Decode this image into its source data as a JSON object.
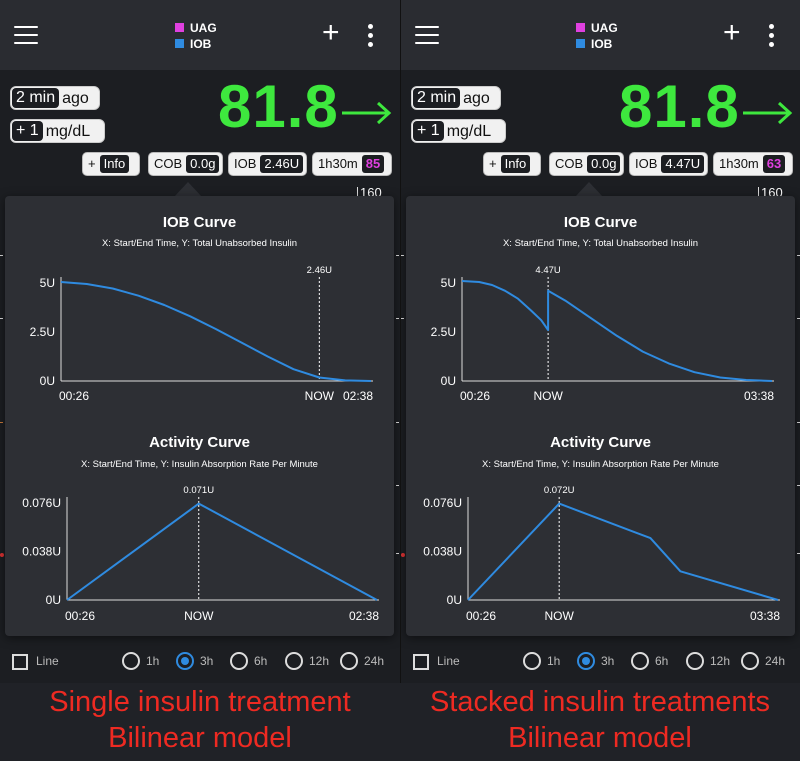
{
  "colors": {
    "bg_value": "#3ee83e",
    "uag": "#e040e0",
    "iob": "#2f8be0",
    "curve": "#2f8be0",
    "caption": "#ee2a22"
  },
  "icons": {
    "menu": "hamburger-menu-icon",
    "add": "plus-icon",
    "more": "more-vertical-icon",
    "trend": "arrow-right-icon"
  },
  "panels": [
    {
      "legend": [
        "UAG",
        "IOB"
      ],
      "time_ago_value": "2 min",
      "time_ago_unit": "ago",
      "delta_value": "+ 1",
      "delta_unit": "mg/dL",
      "bg_value": "81.8",
      "info_prefix": "+",
      "info_label": "Info",
      "cob_label": "COB",
      "cob_value": "0.0g",
      "iob_label": "IOB",
      "iob_value": "2.46U",
      "time_label": "1h30m",
      "time_value": "85",
      "axis_label": "160",
      "iob_title": "IOB Curve",
      "iob_subtitle": "X: Start/End Time, Y: Total Unabsorbed Insulin",
      "iob_marker": "2.46U",
      "iob_yticks": [
        "5U",
        "2.5U",
        "0U"
      ],
      "iob_xticks": [
        "00:26",
        "NOW",
        "02:38"
      ],
      "act_title": "Activity Curve",
      "act_subtitle": "X: Start/End Time, Y: Insulin Absorption Rate Per Minute",
      "act_marker": "0.071U",
      "act_yticks": [
        "0.076U",
        "0.038U",
        "0U"
      ],
      "act_xticks": [
        "00:26",
        "NOW",
        "02:38"
      ],
      "bottom_checkbox": "Line",
      "bottom_radios": [
        "1h",
        "3h",
        "6h",
        "12h",
        "24h"
      ],
      "caption_line1": "Single insulin treatment",
      "caption_line2": "Bilinear model"
    },
    {
      "legend": [
        "UAG",
        "IOB"
      ],
      "time_ago_value": "2 min",
      "time_ago_unit": "ago",
      "delta_value": "+ 1",
      "delta_unit": "mg/dL",
      "bg_value": "81.8",
      "info_prefix": "+",
      "info_label": "Info",
      "cob_label": "COB",
      "cob_value": "0.0g",
      "iob_label": "IOB",
      "iob_value": "4.47U",
      "time_label": "1h30m",
      "time_value": "63",
      "axis_label": "160",
      "iob_title": "IOB Curve",
      "iob_subtitle": "X: Start/End Time, Y: Total Unabsorbed Insulin",
      "iob_marker": "4.47U",
      "iob_yticks": [
        "5U",
        "2.5U",
        "0U"
      ],
      "iob_xticks": [
        "00:26",
        "NOW",
        "03:38"
      ],
      "act_title": "Activity Curve",
      "act_subtitle": "X: Start/End Time, Y: Insulin Absorption Rate Per Minute",
      "act_marker": "0.072U",
      "act_yticks": [
        "0.076U",
        "0.038U",
        "0U"
      ],
      "act_xticks": [
        "00:26",
        "NOW",
        "03:38"
      ],
      "bottom_checkbox": "Line",
      "bottom_radios": [
        "1h",
        "3h",
        "6h",
        "12h",
        "24h"
      ],
      "caption_line1": "Stacked insulin treatments",
      "caption_line2": "Bilinear model"
    }
  ],
  "chart_data": [
    {
      "panel": "left",
      "type": "line",
      "title": "IOB Curve",
      "subtitle": "X: Start/End Time, Y: Total Unabsorbed Insulin",
      "x_ticks": [
        "00:26",
        "NOW",
        "02:38"
      ],
      "y_ticks": [
        "5U",
        "2.5U",
        "0U"
      ],
      "ylim": [
        0,
        5
      ],
      "marker": {
        "label": "2.46U",
        "at": "NOW",
        "value": 2.46
      },
      "series": [
        {
          "values": [
            [
              0,
              5.05
            ],
            [
              0.1,
              4.95
            ],
            [
              0.2,
              4.72
            ],
            [
              0.3,
              4.35
            ],
            [
              0.4,
              3.88
            ],
            [
              0.5,
              3.3
            ],
            [
              0.6,
              2.65
            ],
            [
              0.7,
              1.95
            ],
            [
              0.8,
              1.25
            ],
            [
              0.9,
              0.6
            ],
            [
              1.0,
              0.18
            ],
            [
              1.1,
              0.03
            ],
            [
              1.2,
              0
            ]
          ]
        }
      ]
    },
    {
      "panel": "left",
      "type": "line",
      "title": "Activity Curve",
      "subtitle": "X: Start/End Time, Y: Insulin Absorption Rate Per Minute",
      "x_ticks": [
        "00:26",
        "NOW",
        "02:38"
      ],
      "y_ticks": [
        "0.076U",
        "0.038U",
        "0U"
      ],
      "ylim": [
        0,
        0.076
      ],
      "marker": {
        "label": "0.071U",
        "at": "NOW",
        "value": 0.071
      },
      "series": [
        {
          "values": [
            [
              0,
              0
            ],
            [
              1.02,
              0.0755
            ],
            [
              2.4,
              0
            ]
          ]
        }
      ]
    },
    {
      "panel": "right",
      "type": "line",
      "title": "IOB Curve",
      "subtitle": "X: Start/End Time, Y: Total Unabsorbed Insulin",
      "x_ticks": [
        "00:26",
        "NOW",
        "03:38"
      ],
      "y_ticks": [
        "5U",
        "2.5U",
        "0U"
      ],
      "ylim": [
        0,
        5
      ],
      "marker": {
        "label": "4.47U",
        "at": "NOW",
        "value": 4.47
      },
      "series": [
        {
          "values": [
            [
              0,
              5.1
            ],
            [
              0.2,
              5.05
            ],
            [
              0.35,
              4.9
            ],
            [
              0.5,
              4.6
            ],
            [
              0.65,
              4.2
            ],
            [
              0.8,
              3.6
            ],
            [
              0.92,
              3.1
            ],
            [
              1.0,
              2.6
            ],
            [
              1.0,
              4.6
            ],
            [
              1.2,
              4.1
            ],
            [
              1.5,
              3.2
            ],
            [
              1.8,
              2.3
            ],
            [
              2.1,
              1.5
            ],
            [
              2.4,
              0.9
            ],
            [
              2.7,
              0.45
            ],
            [
              3.0,
              0.18
            ],
            [
              3.3,
              0.05
            ],
            [
              3.6,
              0
            ]
          ]
        }
      ]
    },
    {
      "panel": "right",
      "type": "line",
      "title": "Activity Curve",
      "subtitle": "X: Start/End Time, Y: Insulin Absorption Rate Per Minute",
      "x_ticks": [
        "00:26",
        "NOW",
        "03:38"
      ],
      "y_ticks": [
        "0.076U",
        "0.038U",
        "0U"
      ],
      "ylim": [
        0,
        0.076
      ],
      "marker": {
        "label": "0.072U",
        "at": "NOW",
        "value": 0.072
      },
      "series": [
        {
          "values": [
            [
              0,
              0
            ],
            [
              1.0,
              0.0755
            ],
            [
              2.0,
              0.0485
            ],
            [
              2.33,
              0.0225
            ],
            [
              3.4,
              0
            ]
          ]
        }
      ]
    }
  ]
}
